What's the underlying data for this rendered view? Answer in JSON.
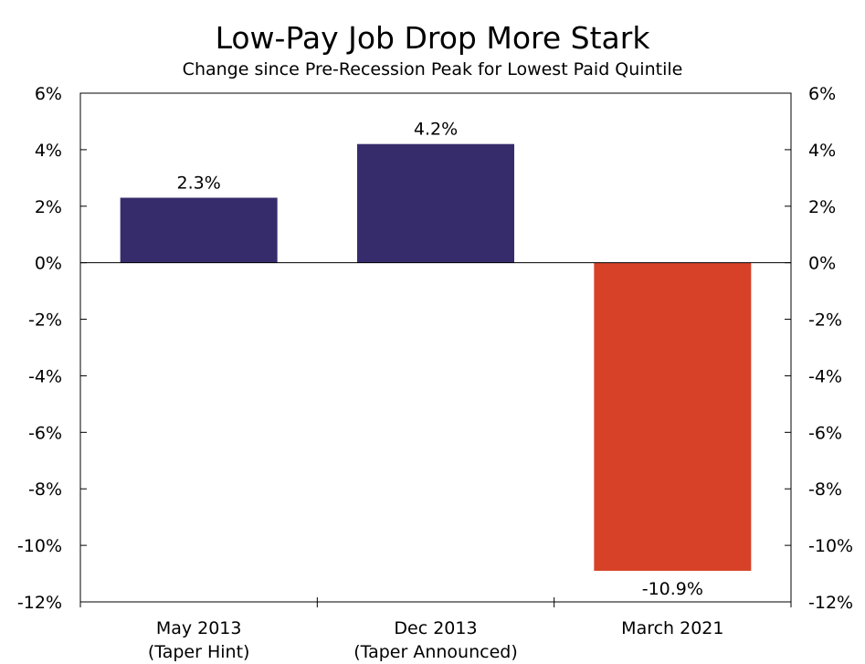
{
  "chart_data": {
    "type": "bar",
    "title": "Low-Pay Job Drop More Stark",
    "subtitle": "Change since Pre-Recession Peak for Lowest Paid Quintile",
    "categories": [
      {
        "line1": "May 2013",
        "line2": "(Taper Hint)"
      },
      {
        "line1": "Dec 2013",
        "line2": "(Taper Announced)"
      },
      {
        "line1": "March 2021",
        "line2": ""
      }
    ],
    "values": [
      2.3,
      4.2,
      -10.9
    ],
    "data_labels": [
      "2.3%",
      "4.2%",
      "-10.9%"
    ],
    "bar_colors": [
      "#362C6C",
      "#362C6C",
      "#D74127"
    ],
    "ylim": [
      -12,
      6
    ],
    "y_ticks": [
      6,
      4,
      2,
      0,
      -2,
      -4,
      -6,
      -8,
      -10,
      -12
    ],
    "y_tick_labels": [
      "6%",
      "4%",
      "2%",
      "0%",
      "-2%",
      "-4%",
      "-6%",
      "-8%",
      "-10%",
      "-12%"
    ],
    "xlabel": "",
    "ylabel": "",
    "grid": false,
    "legend": "none"
  }
}
